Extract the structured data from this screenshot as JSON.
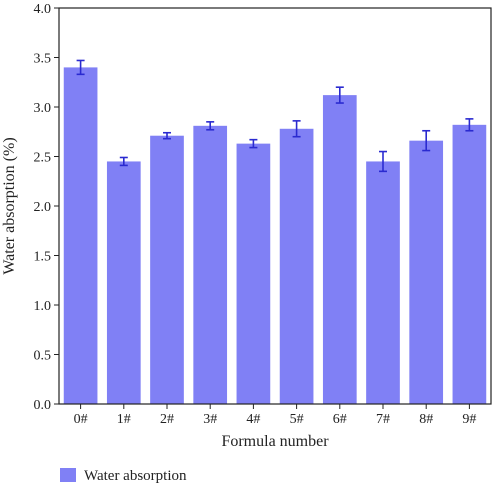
{
  "chart_data": {
    "type": "bar",
    "title": "",
    "xlabel": "Formula number",
    "ylabel": "Water absorption (%)",
    "categories": [
      "0#",
      "1#",
      "2#",
      "3#",
      "4#",
      "5#",
      "6#",
      "7#",
      "8#",
      "9#"
    ],
    "series": [
      {
        "name": "Water absorption",
        "values": [
          3.4,
          2.45,
          2.71,
          2.81,
          2.63,
          2.78,
          3.12,
          2.45,
          2.66,
          2.82
        ],
        "errors": [
          0.07,
          0.04,
          0.03,
          0.04,
          0.04,
          0.08,
          0.08,
          0.1,
          0.1,
          0.06
        ]
      }
    ],
    "ylim": [
      0,
      4.0
    ],
    "yticks": [
      "0.0",
      "0.5",
      "1.0",
      "1.5",
      "2.0",
      "2.5",
      "3.0",
      "3.5",
      "4.0"
    ],
    "grid": false,
    "legend_position": "bottom-left",
    "colors": {
      "bar": "#8080f5",
      "error": "#2a2ad0",
      "axis": "#222222"
    }
  }
}
